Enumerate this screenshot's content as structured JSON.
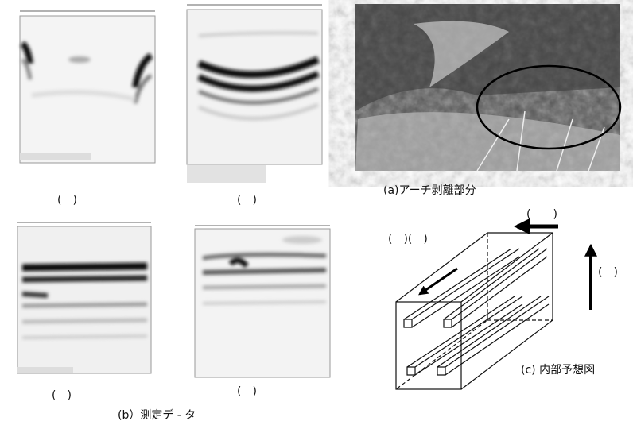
{
  "figure": {
    "radar_captions": [
      "(　)",
      "(　)",
      "(　)",
      "(　)"
    ],
    "photo_caption": "(a)アーチ剥離部分",
    "data_caption": "(b）測定デ - タ",
    "diagram_caption": "(c) 内部予想図",
    "arrow_labels": [
      "(　)(　)",
      "(　　)",
      "(　)"
    ]
  }
}
